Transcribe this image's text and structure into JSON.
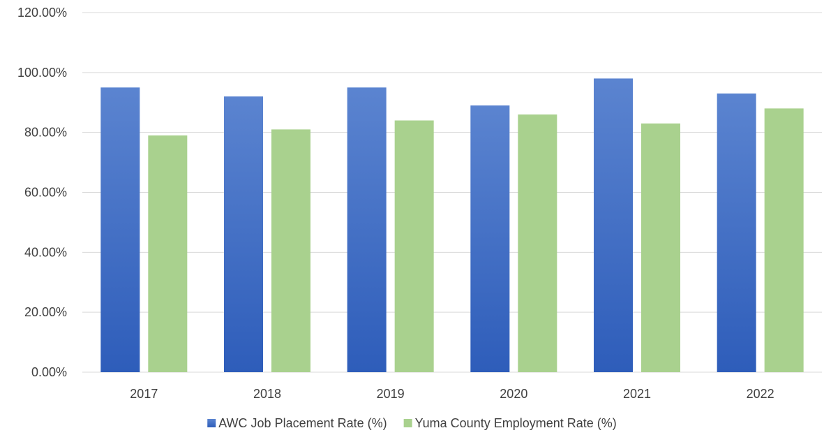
{
  "chart_data": {
    "type": "bar",
    "categories": [
      "2017",
      "2018",
      "2019",
      "2020",
      "2021",
      "2022"
    ],
    "series": [
      {
        "name": "AWC Job Placement Rate (%)",
        "values": [
          95.0,
          92.0,
          95.0,
          89.0,
          98.0,
          93.0
        ],
        "color": "#4472C4"
      },
      {
        "name": "Yuma County Employment Rate (%)",
        "values": [
          79.0,
          81.0,
          84.0,
          86.0,
          83.0,
          88.0
        ],
        "color": "#A9D18E"
      }
    ],
    "ylim": [
      0,
      120
    ],
    "yticks": [
      "0.00%",
      "20.00%",
      "40.00%",
      "60.00%",
      "80.00%",
      "100.00%",
      "120.00%"
    ],
    "grid": true,
    "legend": "bottom",
    "colors": {
      "gridline": "#d9d9d9",
      "axis_text": "#404040"
    }
  }
}
